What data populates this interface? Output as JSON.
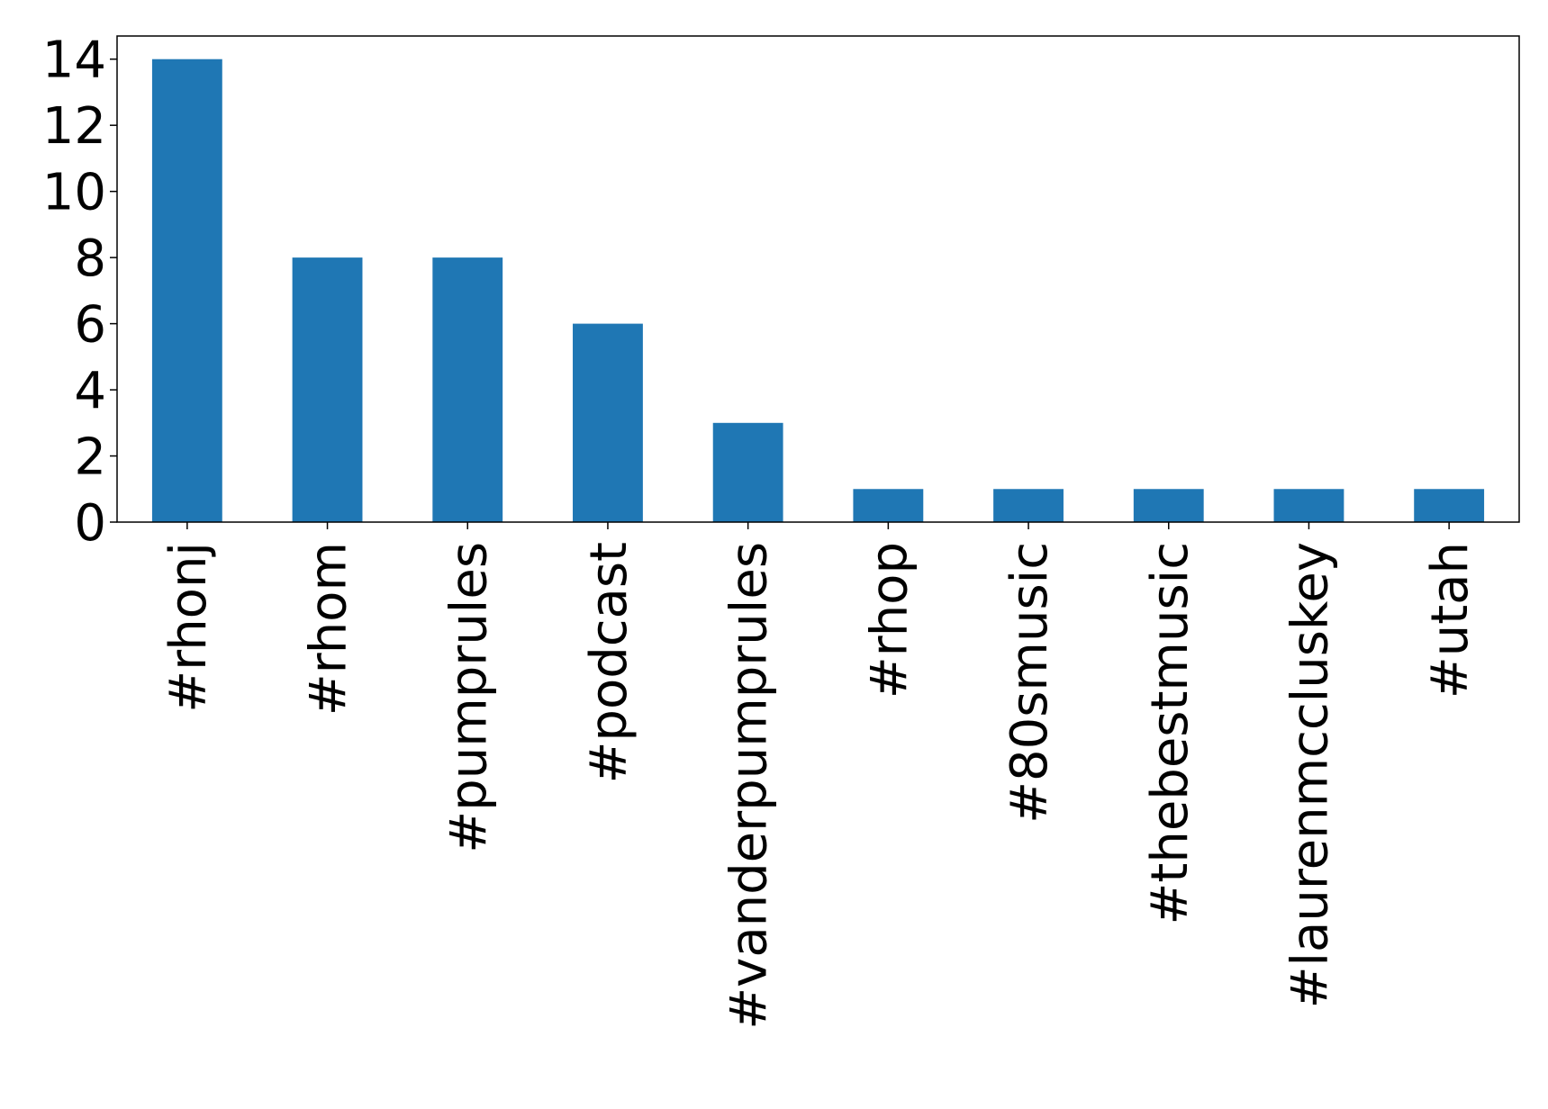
{
  "chart_data": {
    "type": "bar",
    "categories": [
      "#rhonj",
      "#rhom",
      "#pumprules",
      "#podcast",
      "#vanderpumprules",
      "#rhop",
      "#80smusic",
      "#thebestmusic",
      "#laurenmccluskey",
      "#utah"
    ],
    "values": [
      14,
      8,
      8,
      6,
      3,
      1,
      1,
      1,
      1,
      1
    ],
    "yticks": [
      0,
      2,
      4,
      6,
      8,
      10,
      12,
      14
    ],
    "ylim": [
      0,
      14.7
    ],
    "title": "",
    "xlabel": "",
    "ylabel": "",
    "grid": false,
    "bar_color": "#1f77b4"
  }
}
